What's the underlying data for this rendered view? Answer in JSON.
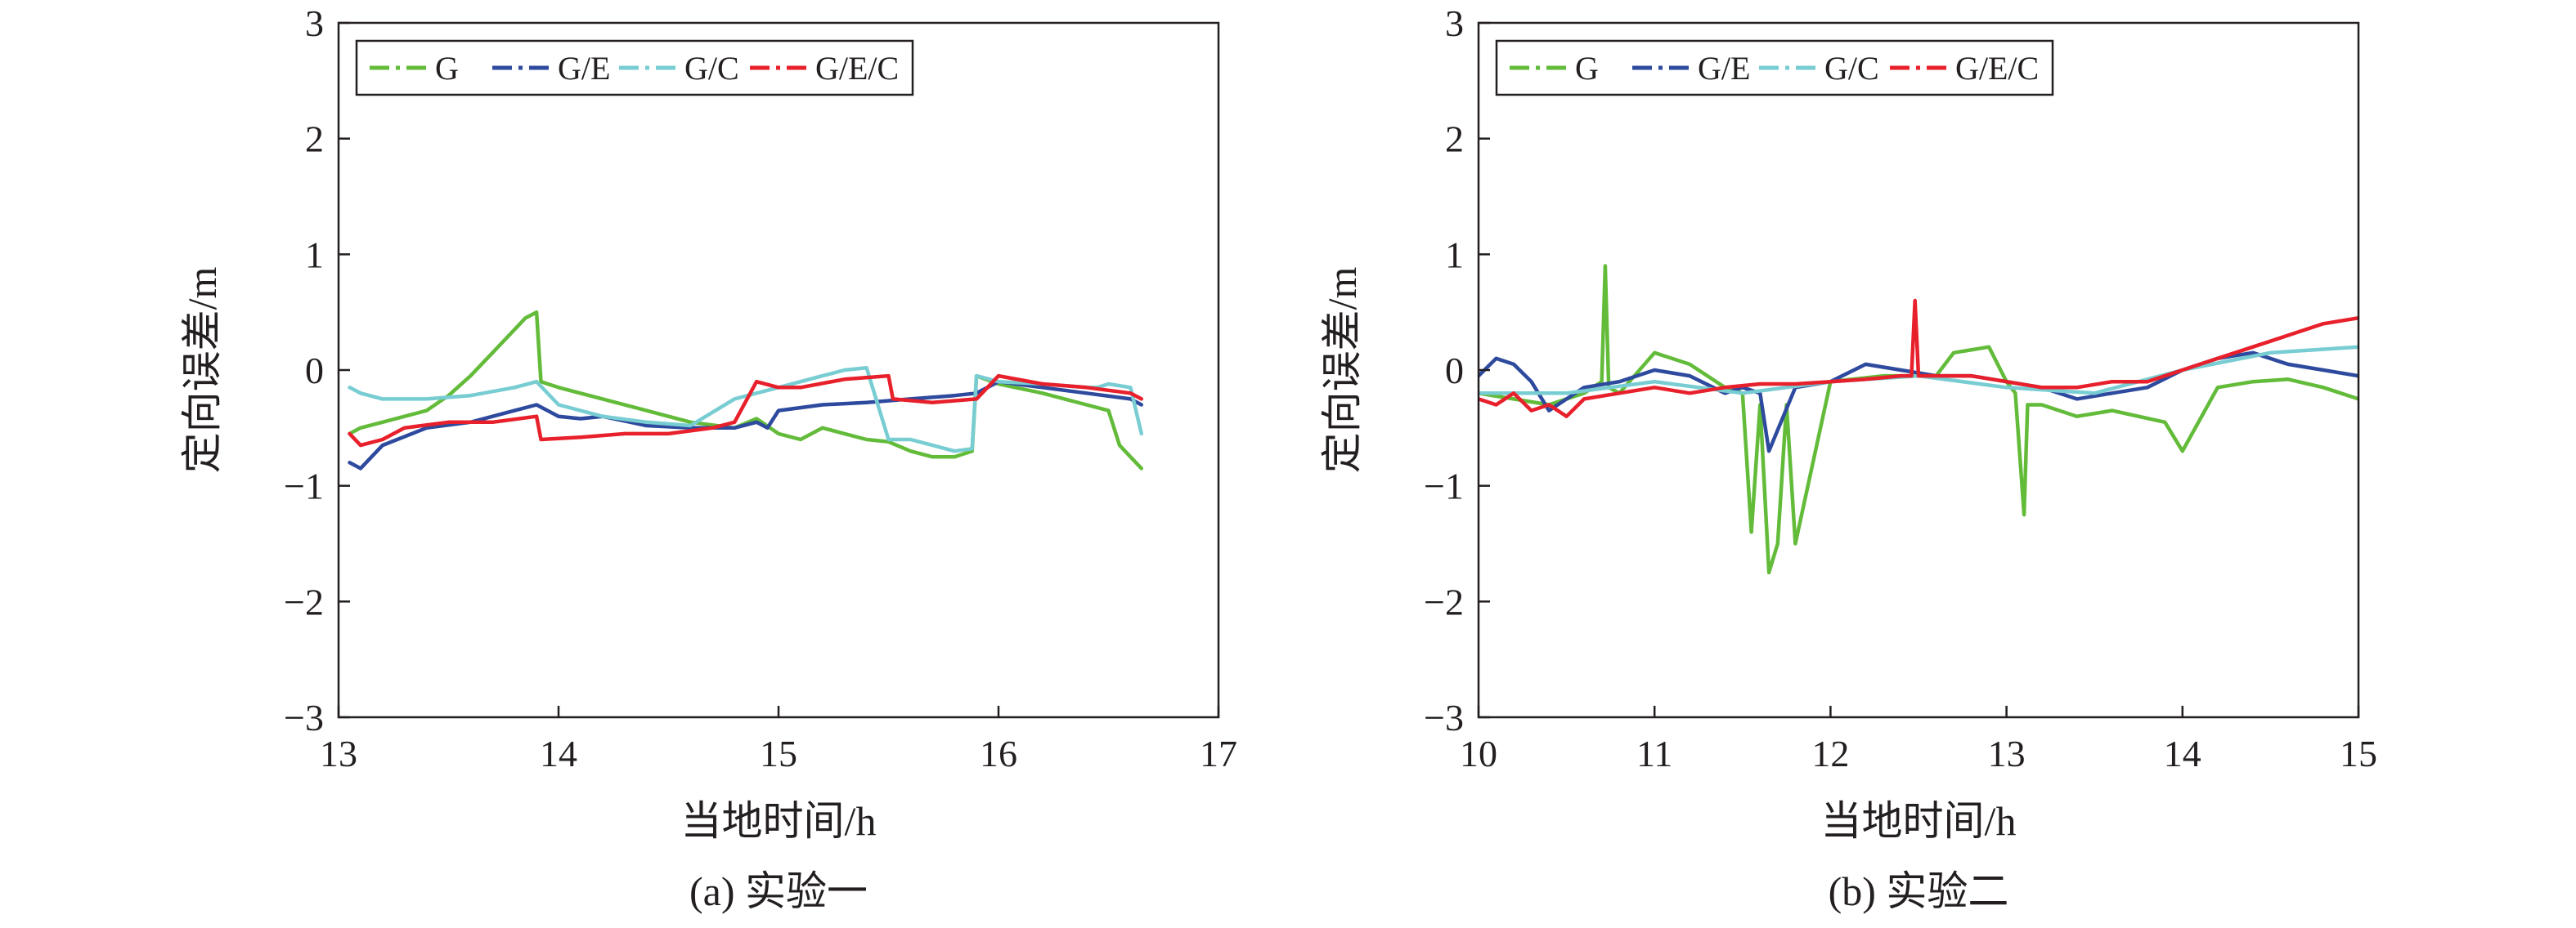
{
  "chart_data": [
    {
      "type": "line",
      "caption": "(a) 实验一",
      "xlabel": "当地时间/h",
      "ylabel": "定向误差/m",
      "xlim": [
        13,
        17
      ],
      "ylim": [
        -3,
        3
      ],
      "xticks": [
        "13",
        "14",
        "15",
        "16",
        "17"
      ],
      "yticks": [
        "3",
        "2",
        "1",
        "0",
        "−1",
        "−2",
        "−3"
      ],
      "grid": false,
      "legend_position": "top-left",
      "series": [
        {
          "name": "G",
          "color": "#63bb3a",
          "x": [
            13.05,
            13.1,
            13.2,
            13.3,
            13.4,
            13.5,
            13.6,
            13.7,
            13.8,
            13.85,
            13.9,
            13.92,
            14.0,
            14.2,
            14.4,
            14.6,
            14.8,
            14.9,
            15.0,
            15.1,
            15.2,
            15.3,
            15.4,
            15.5,
            15.6,
            15.7,
            15.8,
            15.88,
            15.9,
            16.0,
            16.2,
            16.4,
            16.5,
            16.55,
            16.6,
            16.65
          ],
          "y": [
            -0.55,
            -0.5,
            -0.45,
            -0.4,
            -0.35,
            -0.22,
            -0.05,
            0.15,
            0.35,
            0.45,
            0.5,
            -0.1,
            -0.15,
            -0.25,
            -0.35,
            -0.45,
            -0.5,
            -0.42,
            -0.55,
            -0.6,
            -0.5,
            -0.55,
            -0.6,
            -0.62,
            -0.7,
            -0.75,
            -0.75,
            -0.7,
            -0.05,
            -0.12,
            -0.2,
            -0.3,
            -0.35,
            -0.65,
            -0.75,
            -0.85
          ]
        },
        {
          "name": "G/E",
          "color": "#2e4a9e",
          "x": [
            13.05,
            13.1,
            13.2,
            13.4,
            13.6,
            13.8,
            13.9,
            14.0,
            14.1,
            14.2,
            14.4,
            14.6,
            14.8,
            14.9,
            14.95,
            15.0,
            15.2,
            15.4,
            15.6,
            15.8,
            15.9,
            16.0,
            16.2,
            16.4,
            16.6,
            16.65
          ],
          "y": [
            -0.8,
            -0.85,
            -0.65,
            -0.5,
            -0.45,
            -0.35,
            -0.3,
            -0.4,
            -0.42,
            -0.4,
            -0.48,
            -0.5,
            -0.5,
            -0.45,
            -0.5,
            -0.35,
            -0.3,
            -0.28,
            -0.25,
            -0.22,
            -0.2,
            -0.1,
            -0.15,
            -0.2,
            -0.25,
            -0.3
          ]
        },
        {
          "name": "G/C",
          "color": "#78cdd3",
          "x": [
            13.05,
            13.1,
            13.2,
            13.4,
            13.6,
            13.8,
            13.9,
            14.0,
            14.2,
            14.4,
            14.6,
            14.8,
            14.9,
            15.0,
            15.2,
            15.3,
            15.4,
            15.5,
            15.6,
            15.7,
            15.8,
            15.88,
            15.9,
            16.0,
            16.2,
            16.4,
            16.45,
            16.5,
            16.6,
            16.65
          ],
          "y": [
            -0.15,
            -0.2,
            -0.25,
            -0.25,
            -0.22,
            -0.15,
            -0.1,
            -0.3,
            -0.4,
            -0.45,
            -0.48,
            -0.25,
            -0.2,
            -0.15,
            -0.05,
            0.0,
            0.02,
            -0.6,
            -0.6,
            -0.65,
            -0.7,
            -0.68,
            -0.05,
            -0.1,
            -0.12,
            -0.15,
            -0.15,
            -0.12,
            -0.15,
            -0.55
          ]
        },
        {
          "name": "G/E/C",
          "color": "#e8202b",
          "x": [
            13.05,
            13.1,
            13.2,
            13.3,
            13.5,
            13.7,
            13.9,
            13.92,
            14.1,
            14.3,
            14.5,
            14.7,
            14.8,
            14.9,
            15.0,
            15.1,
            15.3,
            15.5,
            15.52,
            15.7,
            15.9,
            16.0,
            16.2,
            16.4,
            16.6,
            16.65
          ],
          "y": [
            -0.55,
            -0.65,
            -0.6,
            -0.5,
            -0.45,
            -0.45,
            -0.4,
            -0.6,
            -0.58,
            -0.55,
            -0.55,
            -0.5,
            -0.45,
            -0.1,
            -0.15,
            -0.15,
            -0.08,
            -0.05,
            -0.25,
            -0.28,
            -0.25,
            -0.05,
            -0.12,
            -0.15,
            -0.2,
            -0.25
          ]
        }
      ]
    },
    {
      "type": "line",
      "caption": "(b) 实验二",
      "xlabel": "当地时间/h",
      "ylabel": "定向误差/m",
      "xlim": [
        10,
        15
      ],
      "ylim": [
        -3,
        3
      ],
      "xticks": [
        "10",
        "11",
        "12",
        "13",
        "14",
        "15"
      ],
      "yticks": [
        "3",
        "2",
        "1",
        "0",
        "−1",
        "−2",
        "−3"
      ],
      "grid": false,
      "legend_position": "top-left",
      "series": [
        {
          "name": "G",
          "color": "#63bb3a",
          "x": [
            10.0,
            10.2,
            10.4,
            10.6,
            10.7,
            10.72,
            10.74,
            10.8,
            11.0,
            11.2,
            11.4,
            11.5,
            11.55,
            11.6,
            11.65,
            11.7,
            11.75,
            11.8,
            12.0,
            12.3,
            12.6,
            12.7,
            12.9,
            13.0,
            13.05,
            13.1,
            13.12,
            13.2,
            13.4,
            13.6,
            13.9,
            14.0,
            14.2,
            14.4,
            14.6,
            14.8,
            15.0
          ],
          "y": [
            -0.2,
            -0.25,
            -0.3,
            -0.2,
            -0.1,
            0.9,
            -0.15,
            -0.2,
            0.15,
            0.05,
            -0.15,
            -0.2,
            -1.4,
            -0.3,
            -1.75,
            -1.5,
            -0.3,
            -1.5,
            -0.1,
            -0.05,
            -0.05,
            0.15,
            0.2,
            -0.1,
            -0.2,
            -1.25,
            -0.3,
            -0.3,
            -0.4,
            -0.35,
            -0.45,
            -0.7,
            -0.15,
            -0.1,
            -0.08,
            -0.15,
            -0.25
          ]
        },
        {
          "name": "G/E",
          "color": "#2e4a9e",
          "x": [
            10.0,
            10.1,
            10.2,
            10.3,
            10.4,
            10.5,
            10.6,
            10.8,
            11.0,
            11.2,
            11.4,
            11.5,
            11.6,
            11.65,
            11.8,
            12.0,
            12.2,
            12.4,
            12.6,
            12.8,
            13.0,
            13.2,
            13.4,
            13.6,
            13.8,
            14.0,
            14.2,
            14.4,
            14.6,
            14.8,
            15.0
          ],
          "y": [
            -0.05,
            0.1,
            0.05,
            -0.1,
            -0.35,
            -0.25,
            -0.15,
            -0.1,
            0.0,
            -0.05,
            -0.2,
            -0.15,
            -0.2,
            -0.7,
            -0.15,
            -0.1,
            0.05,
            0.0,
            -0.05,
            -0.05,
            -0.1,
            -0.15,
            -0.25,
            -0.2,
            -0.15,
            0.0,
            0.1,
            0.15,
            0.05,
            0.0,
            -0.05
          ]
        },
        {
          "name": "G/C",
          "color": "#78cdd3",
          "x": [
            10.0,
            10.5,
            11.0,
            11.5,
            12.0,
            12.5,
            13.0,
            13.5,
            14.0,
            14.5,
            15.0
          ],
          "y": [
            -0.2,
            -0.2,
            -0.1,
            -0.2,
            -0.1,
            -0.05,
            -0.15,
            -0.2,
            0.0,
            0.15,
            0.2
          ]
        },
        {
          "name": "G/E/C",
          "color": "#e8202b",
          "x": [
            10.0,
            10.1,
            10.2,
            10.3,
            10.4,
            10.5,
            10.6,
            10.8,
            11.0,
            11.2,
            11.4,
            11.6,
            11.8,
            12.0,
            12.2,
            12.4,
            12.46,
            12.48,
            12.5,
            12.6,
            12.8,
            13.0,
            13.2,
            13.4,
            13.6,
            13.8,
            14.0,
            14.2,
            14.4,
            14.6,
            14.8,
            15.0
          ],
          "y": [
            -0.25,
            -0.3,
            -0.2,
            -0.35,
            -0.3,
            -0.4,
            -0.25,
            -0.2,
            -0.15,
            -0.2,
            -0.15,
            -0.12,
            -0.12,
            -0.1,
            -0.08,
            -0.05,
            -0.05,
            0.6,
            -0.05,
            -0.05,
            -0.05,
            -0.1,
            -0.15,
            -0.15,
            -0.1,
            -0.1,
            0.0,
            0.1,
            0.2,
            0.3,
            0.4,
            0.45
          ]
        }
      ]
    }
  ]
}
